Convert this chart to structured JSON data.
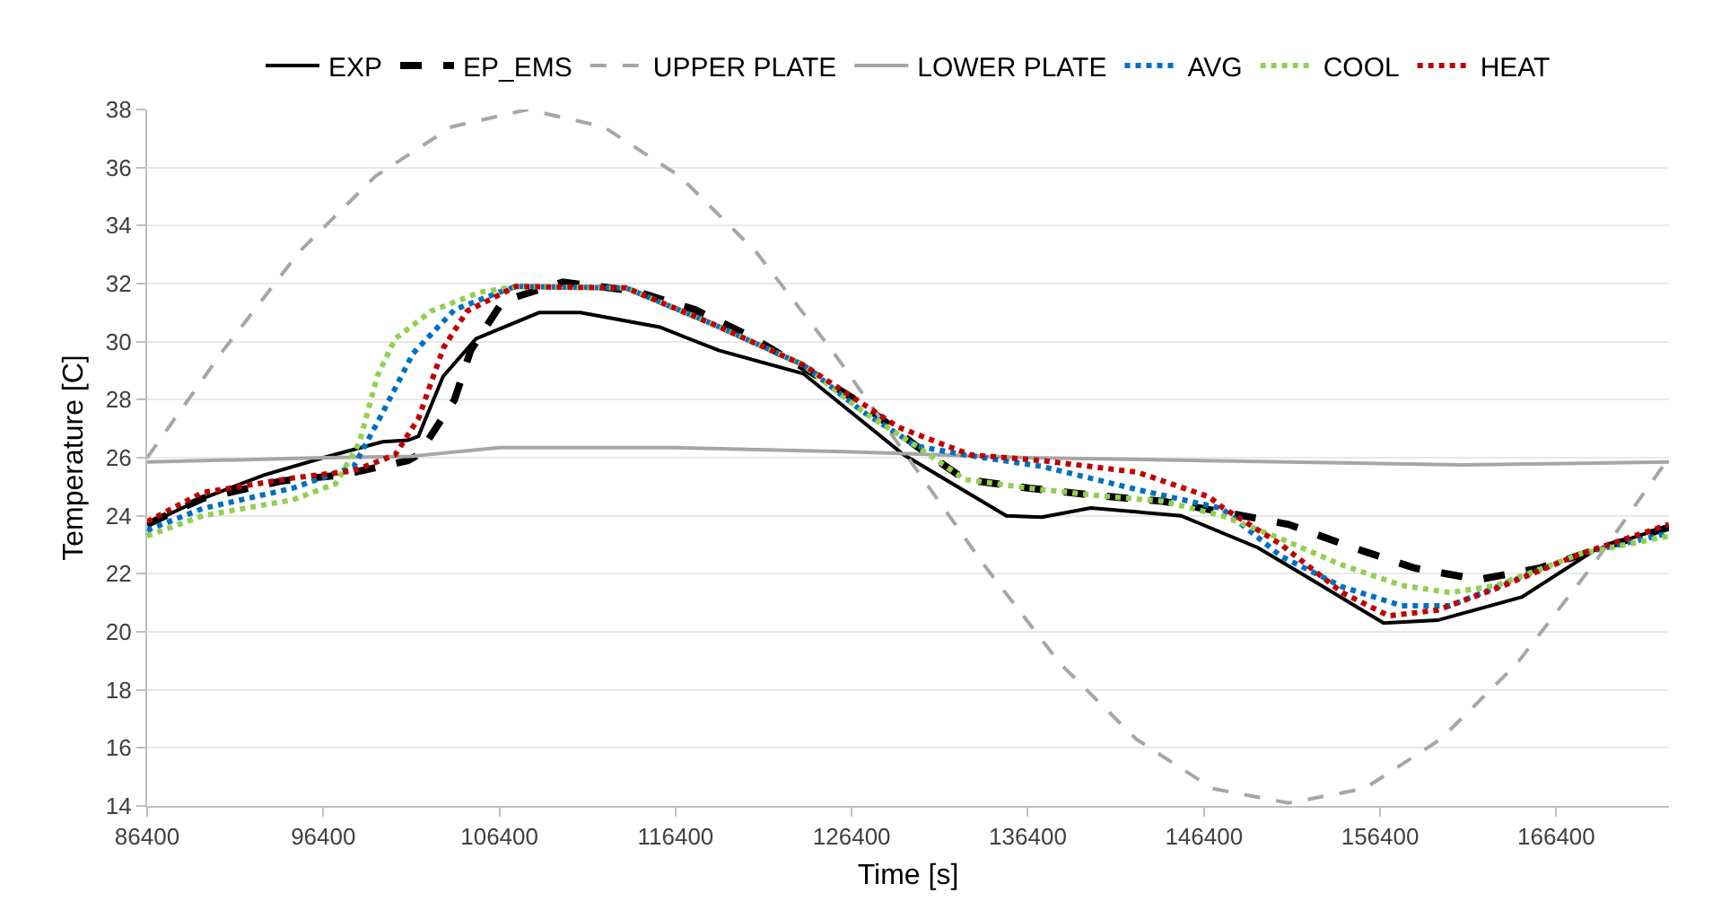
{
  "chart_data": {
    "type": "line",
    "xlabel": "Time [s]",
    "ylabel": "Temperature [C]",
    "xlim": [
      86400,
      172800
    ],
    "ylim": [
      14,
      38
    ],
    "xticks": [
      86400,
      96400,
      106400,
      116400,
      126400,
      136400,
      146400,
      156400,
      166400
    ],
    "yticks": [
      14,
      16,
      18,
      20,
      22,
      24,
      26,
      28,
      30,
      32,
      34,
      36,
      38
    ],
    "grid": "y",
    "legend": "top",
    "marker": "none",
    "series": [
      {
        "name": "EXP",
        "color": "#000000",
        "line_style": "solid",
        "x": [
          86400,
          89560,
          93030,
          96400,
          99770,
          101200,
          101800,
          103200,
          105070,
          108650,
          111000,
          115500,
          118850,
          123650,
          129360,
          135180,
          137200,
          139970,
          145100,
          149460,
          152500,
          156600,
          159670,
          164460,
          168540,
          172800
        ],
        "values": [
          23.7,
          24.6,
          25.4,
          26.0,
          26.55,
          26.6,
          26.74,
          28.8,
          30.1,
          31.0,
          31.0,
          30.5,
          29.7,
          28.9,
          26.1,
          24.0,
          23.95,
          24.27,
          24.0,
          22.9,
          21.8,
          20.3,
          20.4,
          21.2,
          22.8,
          23.65
        ]
      },
      {
        "name": "EP_EMS",
        "color": "#000000",
        "line_style": "dashed",
        "x": [
          86400,
          89560,
          94050,
          97420,
          101200,
          101800,
          103850,
          104770,
          106600,
          110000,
          114050,
          117500,
          120580,
          123950,
          127000,
          130070,
          132830,
          136500,
          140280,
          144050,
          147730,
          151200,
          154870,
          158340,
          162000,
          165480,
          169560,
          172800
        ],
        "values": [
          23.7,
          24.6,
          25.2,
          25.4,
          25.9,
          26.1,
          28.0,
          29.7,
          31.4,
          32.05,
          31.75,
          31.1,
          30.2,
          29.0,
          27.85,
          26.4,
          25.25,
          24.95,
          24.7,
          24.5,
          24.1,
          23.7,
          22.9,
          22.2,
          21.8,
          22.2,
          23.0,
          23.6
        ]
      },
      {
        "name": "UPPER PLATE",
        "color": "#a6a6a6",
        "line_style": "dashed",
        "x": [
          86400,
          90720,
          95040,
          99360,
          103680,
          108000,
          112320,
          116640,
          120960,
          125280,
          129600,
          133920,
          138240,
          142560,
          146880,
          151200,
          155520,
          159840,
          164160,
          168480,
          172800
        ],
        "values": [
          26,
          29.7,
          33.1,
          35.7,
          37.4,
          38,
          37.4,
          35.7,
          33.1,
          29.7,
          26,
          22.3,
          18.9,
          16.3,
          14.6,
          14.1,
          14.6,
          16.3,
          18.9,
          22.3,
          26
        ]
      },
      {
        "name": "LOWER PLATE",
        "color": "#a6a6a6",
        "line_style": "solid",
        "x": [
          86400,
          96400,
          101400,
          106400,
          116400,
          126400,
          136400,
          146400,
          156400,
          161000,
          172800
        ],
        "values": [
          25.85,
          26.0,
          26.05,
          26.35,
          26.35,
          26.2,
          26.0,
          25.9,
          25.8,
          25.75,
          25.85
        ]
      },
      {
        "name": "AVG",
        "color": "#0070c0",
        "line_style": "dotted",
        "x": [
          86400,
          89560,
          94670,
          98130,
          99770,
          101500,
          103850,
          106600,
          107320,
          113600,
          118540,
          123650,
          127000,
          130070,
          132830,
          137200,
          142620,
          147420,
          150790,
          154250,
          157620,
          160380,
          163030,
          167830,
          172800
        ],
        "values": [
          23.5,
          24.25,
          24.95,
          25.7,
          27.55,
          29.6,
          31.1,
          31.75,
          31.9,
          31.85,
          30.6,
          29.2,
          27.6,
          26.4,
          26.1,
          25.7,
          24.9,
          24.25,
          22.6,
          21.55,
          20.9,
          20.9,
          21.55,
          22.7,
          23.4
        ]
      },
      {
        "name": "COOL",
        "color": "#92d050",
        "line_style": "dotted",
        "x": [
          86400,
          89560,
          94670,
          97100,
          98440,
          99460,
          100480,
          102520,
          105280,
          107320,
          113600,
          118540,
          123650,
          127000,
          130070,
          132830,
          136500,
          140280,
          144050,
          147420,
          150790,
          154250,
          157620,
          160380,
          163030,
          167830,
          172800
        ],
        "values": [
          23.3,
          24.0,
          24.55,
          25.1,
          26.5,
          28.8,
          30.1,
          31.05,
          31.7,
          31.9,
          31.85,
          30.6,
          29.2,
          27.6,
          26.4,
          25.25,
          24.95,
          24.7,
          24.5,
          24.0,
          23.2,
          22.3,
          21.6,
          21.35,
          21.6,
          22.7,
          23.3
        ]
      },
      {
        "name": "HEAT",
        "color": "#c00000",
        "line_style": "dotted",
        "x": [
          86400,
          89560,
          94670,
          98130,
          100480,
          101800,
          103230,
          104560,
          107320,
          113600,
          118540,
          123650,
          129050,
          133130,
          137200,
          142620,
          146700,
          147420,
          150790,
          154250,
          156900,
          159670,
          163030,
          167830,
          172800
        ],
        "values": [
          23.8,
          24.8,
          25.3,
          25.55,
          26.1,
          27.35,
          29.8,
          31.05,
          31.9,
          31.85,
          30.6,
          29.2,
          27.05,
          26.1,
          25.9,
          25.5,
          24.65,
          24.3,
          23.0,
          21.35,
          20.55,
          20.75,
          21.5,
          22.7,
          23.7
        ]
      }
    ]
  }
}
